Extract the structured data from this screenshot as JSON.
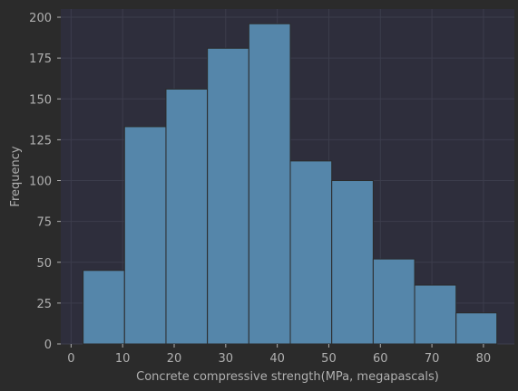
{
  "chart_data": {
    "type": "bar",
    "histogram": true,
    "title": "",
    "xlabel": "Concrete compressive strength(MPa, megapascals)",
    "ylabel": "Frequency",
    "bin_edges": [
      2.33,
      10.37,
      18.41,
      26.45,
      34.49,
      42.53,
      50.57,
      58.61,
      66.65,
      74.69,
      82.6
    ],
    "values": [
      45,
      133,
      156,
      181,
      196,
      112,
      100,
      52,
      36,
      19
    ],
    "xlim": [
      -2,
      86
    ],
    "ylim": [
      0,
      205
    ],
    "xticks": [
      0,
      10,
      20,
      30,
      40,
      50,
      60,
      70,
      80
    ],
    "yticks": [
      0,
      25,
      50,
      75,
      100,
      125,
      150,
      175,
      200
    ],
    "grid": true,
    "colors": {
      "background": "#2b2b2b",
      "plot_background": "#2e2e3c",
      "bar": "#5586aa",
      "bar_edge": "#2b2b2b",
      "grid": "#3c3d4c",
      "text": "#b0b0b0"
    }
  }
}
